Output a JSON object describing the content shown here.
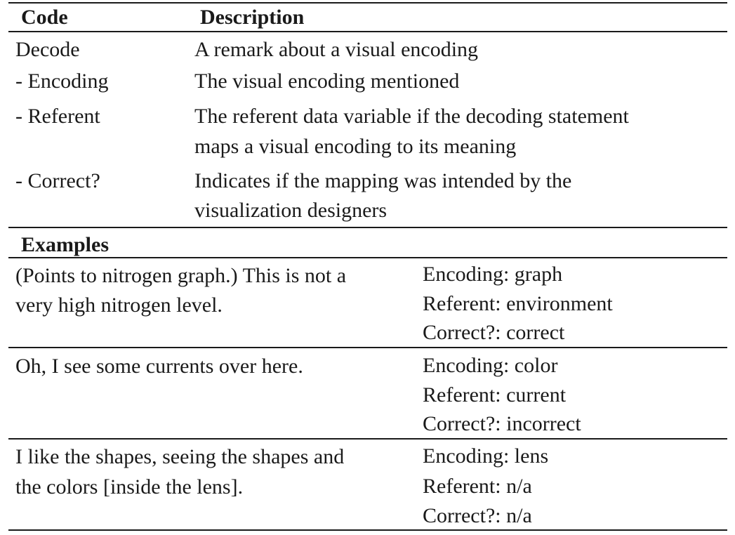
{
  "header": {
    "code": "Code",
    "description": "Description"
  },
  "codes": [
    {
      "code": "Decode",
      "desc_lines": [
        "A remark about a visual encoding"
      ]
    },
    {
      "code": "-  Encoding",
      "desc_lines": [
        "The visual encoding mentioned"
      ]
    },
    {
      "code": "-  Referent",
      "desc_lines": [
        "The referent data variable if the decoding statement",
        "maps a visual encoding to its meaning"
      ]
    },
    {
      "code": "-  Correct?",
      "desc_lines": [
        "Indicates if the mapping was intended by the",
        "visualization designers"
      ]
    }
  ],
  "examples_header": "Examples",
  "examples": [
    {
      "quote_lines": [
        "(Points to nitrogen graph.) This is not a",
        "very high nitrogen level."
      ],
      "encoding": "Encoding: graph",
      "referent": "Referent: environment",
      "correct": "Correct?: correct"
    },
    {
      "quote_lines": [
        "Oh, I see some currents over here."
      ],
      "encoding": "Encoding: color",
      "referent": "Referent: current",
      "correct": "Correct?: incorrect"
    },
    {
      "quote_lines": [
        "I like the shapes, seeing the shapes and",
        "the colors [inside the lens]."
      ],
      "encoding": "Encoding: lens",
      "referent": "Referent: n/a",
      "correct": "Correct?: n/a"
    }
  ]
}
